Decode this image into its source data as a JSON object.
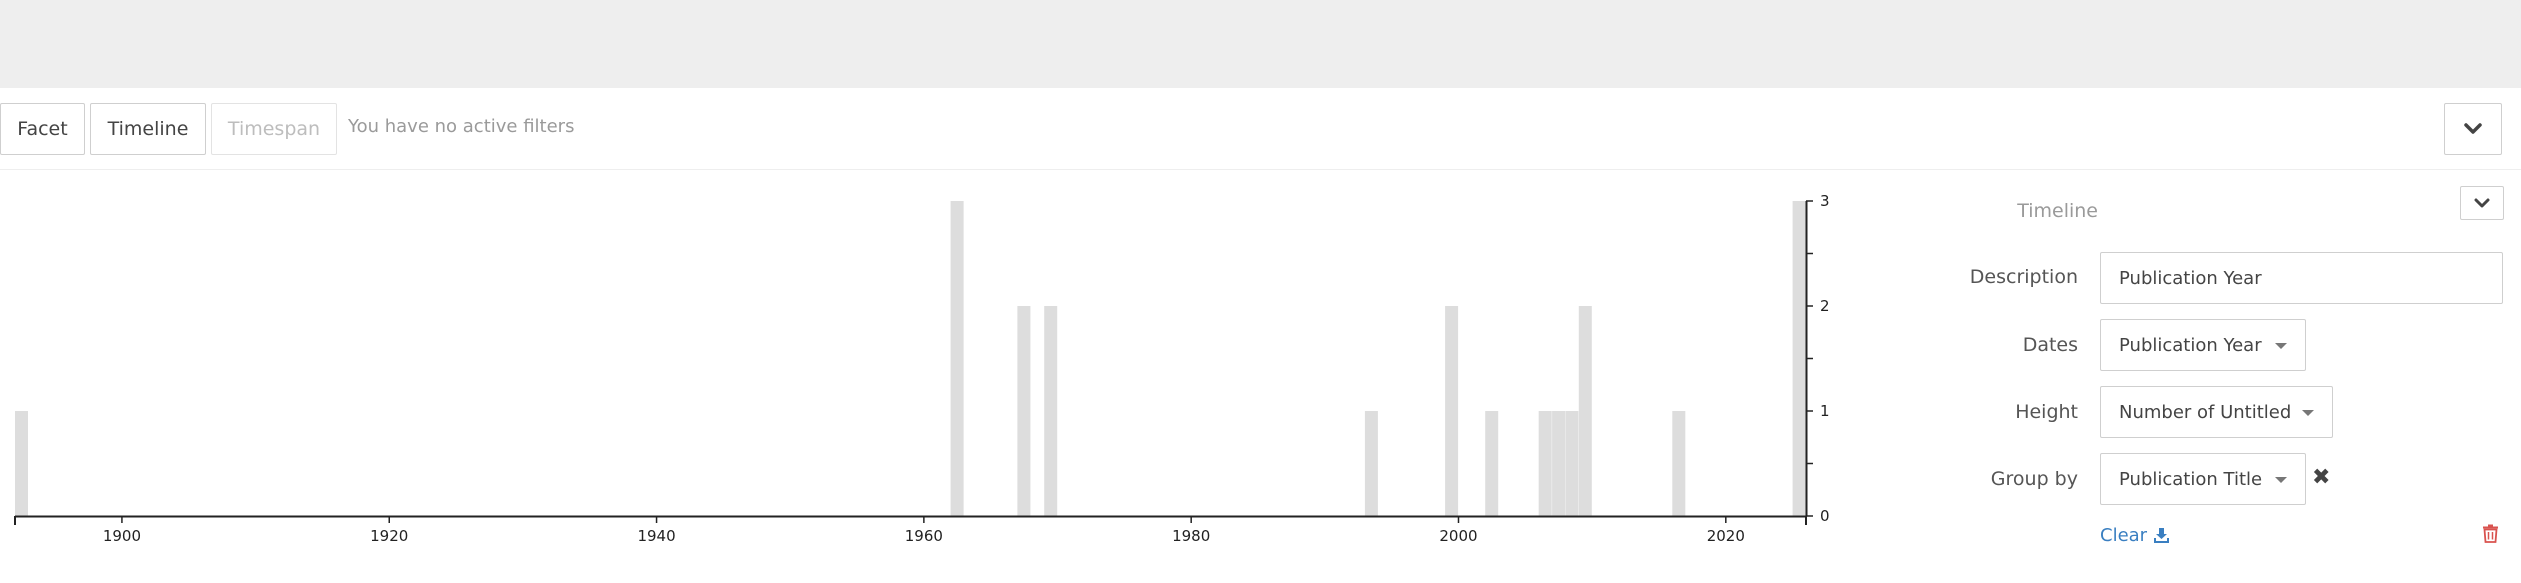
{
  "toolbar": {
    "facet_label": "Facet",
    "timeline_label": "Timeline",
    "timespan_label": "Timespan",
    "filters_message": "You have no active filters",
    "collapse_icon": "chevron-down-icon"
  },
  "panel": {
    "title": "Timeline",
    "description_label": "Description",
    "description_value": "Publication Year",
    "dates_label": "Dates",
    "dates_value": "Publication Year",
    "height_label": "Height",
    "height_value": "Number of Untitled",
    "groupby_label": "Group by",
    "groupby_value": "Publication Title",
    "clear_label": "Clear",
    "colors": {
      "link": "#3a7fc1",
      "delete": "#d9534f"
    }
  },
  "chart_data": {
    "type": "bar",
    "x_unit": "year",
    "xlim": [
      1892,
      2026
    ],
    "ylim": [
      0,
      3
    ],
    "x_ticks": [
      1900,
      1920,
      1940,
      1960,
      1980,
      2000,
      2020
    ],
    "y_ticks": [
      0,
      1,
      2,
      3
    ],
    "y_axis_position": "right",
    "bar_color": "#dddddd",
    "bars": [
      {
        "x": 1892,
        "value": 1
      },
      {
        "x": 1962,
        "value": 3
      },
      {
        "x": 1967,
        "value": 2
      },
      {
        "x": 1969,
        "value": 2
      },
      {
        "x": 1993,
        "value": 1
      },
      {
        "x": 1999,
        "value": 2
      },
      {
        "x": 2002,
        "value": 1
      },
      {
        "x": 2006,
        "value": 1
      },
      {
        "x": 2007,
        "value": 1
      },
      {
        "x": 2008,
        "value": 1
      },
      {
        "x": 2009,
        "value": 2
      },
      {
        "x": 2016,
        "value": 1
      },
      {
        "x": 2025,
        "value": 3
      }
    ]
  }
}
